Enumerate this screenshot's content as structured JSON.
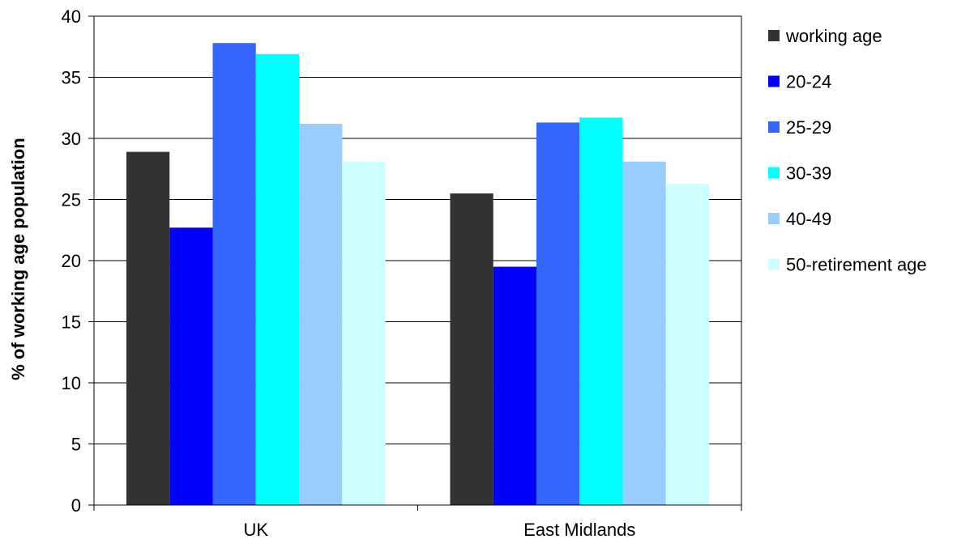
{
  "chart_data": {
    "type": "bar",
    "title": "",
    "xlabel": "",
    "ylabel": "% of working age population",
    "categories": [
      "UK",
      "East Midlands"
    ],
    "series": [
      {
        "name": "working age",
        "color": "#333333",
        "values": [
          28.9,
          25.5
        ]
      },
      {
        "name": "20-24",
        "color": "#0000FF",
        "values": [
          22.7,
          19.5
        ]
      },
      {
        "name": "25-29",
        "color": "#3366FF",
        "values": [
          37.8,
          31.3
        ]
      },
      {
        "name": "30-39",
        "color": "#00FFFF",
        "values": [
          36.9,
          31.7
        ]
      },
      {
        "name": "40-49",
        "color": "#99CCFF",
        "values": [
          31.2,
          28.1
        ]
      },
      {
        "name": "50-retirement age",
        "color": "#CCFFFF",
        "values": [
          28.1,
          26.3
        ]
      }
    ],
    "ylim": [
      0,
      40
    ],
    "yticks": [
      0,
      5,
      10,
      15,
      20,
      25,
      30,
      35,
      40
    ],
    "grid": true,
    "legend_position": "right"
  }
}
